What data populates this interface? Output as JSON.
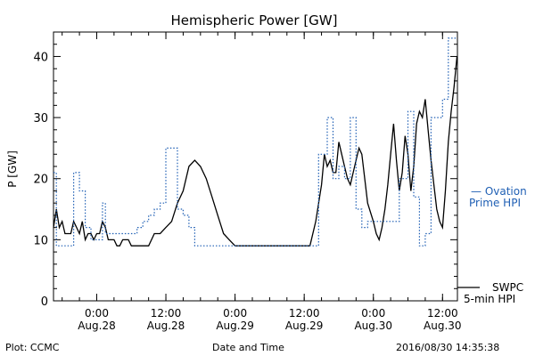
{
  "chart_data": {
    "type": "line",
    "title": "Hemispheric Power [GW]",
    "xlabel": "Date and Time",
    "ylabel": "P [GW]",
    "xlim": [
      "2016-08-27 16:30",
      "2016-08-30 14:35"
    ],
    "ylim": [
      0,
      44
    ],
    "yticks": [
      0,
      10,
      20,
      30,
      40
    ],
    "xticks": [
      {
        "x": "2016-08-28 00:00",
        "time": "0:00",
        "date": "Aug.28"
      },
      {
        "x": "2016-08-28 12:00",
        "time": "12:00",
        "date": "Aug.28"
      },
      {
        "x": "2016-08-29 00:00",
        "time": "0:00",
        "date": "Aug.29"
      },
      {
        "x": "2016-08-29 12:00",
        "time": "12:00",
        "date": "Aug.29"
      },
      {
        "x": "2016-08-30 00:00",
        "time": "0:00",
        "date": "Aug.30"
      },
      {
        "x": "2016-08-30 12:00",
        "time": "12:00",
        "date": "Aug.30"
      }
    ],
    "series": [
      {
        "name": "SWPC 5-min HPI",
        "legend_lines": [
          "SWPC",
          "5-min HPI"
        ],
        "color": "#000000",
        "style": "solid",
        "points": [
          [
            "2016-08-27 16:30",
            12
          ],
          [
            "2016-08-27 17:00",
            15
          ],
          [
            "2016-08-27 17:30",
            12
          ],
          [
            "2016-08-27 18:00",
            13
          ],
          [
            "2016-08-27 18:30",
            11
          ],
          [
            "2016-08-27 19:30",
            11
          ],
          [
            "2016-08-27 20:00",
            13
          ],
          [
            "2016-08-27 20:30",
            12
          ],
          [
            "2016-08-27 21:00",
            11
          ],
          [
            "2016-08-27 21:30",
            13
          ],
          [
            "2016-08-27 22:00",
            10
          ],
          [
            "2016-08-27 22:30",
            11
          ],
          [
            "2016-08-27 23:00",
            11
          ],
          [
            "2016-08-27 23:30",
            10
          ],
          [
            "2016-08-28 00:00",
            11
          ],
          [
            "2016-08-28 00:30",
            11
          ],
          [
            "2016-08-28 01:00",
            13
          ],
          [
            "2016-08-28 01:30",
            12
          ],
          [
            "2016-08-28 02:00",
            10
          ],
          [
            "2016-08-28 03:00",
            10
          ],
          [
            "2016-08-28 03:30",
            9
          ],
          [
            "2016-08-28 04:00",
            9
          ],
          [
            "2016-08-28 04:30",
            10
          ],
          [
            "2016-08-28 05:30",
            10
          ],
          [
            "2016-08-28 06:00",
            9
          ],
          [
            "2016-08-28 06:30",
            9
          ],
          [
            "2016-08-28 07:30",
            9
          ],
          [
            "2016-08-28 09:00",
            9
          ],
          [
            "2016-08-28 09:30",
            10
          ],
          [
            "2016-08-28 10:00",
            11
          ],
          [
            "2016-08-28 11:00",
            11
          ],
          [
            "2016-08-28 12:00",
            12
          ],
          [
            "2016-08-28 13:00",
            13
          ],
          [
            "2016-08-28 14:00",
            16
          ],
          [
            "2016-08-28 15:00",
            18
          ],
          [
            "2016-08-28 16:00",
            22
          ],
          [
            "2016-08-28 17:00",
            23
          ],
          [
            "2016-08-28 18:00",
            22
          ],
          [
            "2016-08-28 19:00",
            20
          ],
          [
            "2016-08-28 20:00",
            17
          ],
          [
            "2016-08-28 21:00",
            14
          ],
          [
            "2016-08-28 22:00",
            11
          ],
          [
            "2016-08-28 23:00",
            10
          ],
          [
            "2016-08-29 00:00",
            9
          ],
          [
            "2016-08-29 13:00",
            9
          ],
          [
            "2016-08-29 14:00",
            13
          ],
          [
            "2016-08-29 15:00",
            19
          ],
          [
            "2016-08-29 15:30",
            24
          ],
          [
            "2016-08-29 16:00",
            22
          ],
          [
            "2016-08-29 16:30",
            23
          ],
          [
            "2016-08-29 17:00",
            21
          ],
          [
            "2016-08-29 17:30",
            21
          ],
          [
            "2016-08-29 18:00",
            26
          ],
          [
            "2016-08-29 18:30",
            24
          ],
          [
            "2016-08-29 19:00",
            22
          ],
          [
            "2016-08-29 19:30",
            20
          ],
          [
            "2016-08-29 20:00",
            19
          ],
          [
            "2016-08-29 20:30",
            21
          ],
          [
            "2016-08-29 21:00",
            23
          ],
          [
            "2016-08-29 21:30",
            25
          ],
          [
            "2016-08-29 22:00",
            24
          ],
          [
            "2016-08-29 23:00",
            16
          ],
          [
            "2016-08-30 00:00",
            13
          ],
          [
            "2016-08-30 00:30",
            11
          ],
          [
            "2016-08-30 01:00",
            10
          ],
          [
            "2016-08-30 01:30",
            12
          ],
          [
            "2016-08-30 02:00",
            15
          ],
          [
            "2016-08-30 02:30",
            19
          ],
          [
            "2016-08-30 03:00",
            24
          ],
          [
            "2016-08-30 03:30",
            29
          ],
          [
            "2016-08-30 04:00",
            23
          ],
          [
            "2016-08-30 04:30",
            18
          ],
          [
            "2016-08-30 05:00",
            21
          ],
          [
            "2016-08-30 05:30",
            27
          ],
          [
            "2016-08-30 06:00",
            24
          ],
          [
            "2016-08-30 06:30",
            18
          ],
          [
            "2016-08-30 07:00",
            22
          ],
          [
            "2016-08-30 07:30",
            29
          ],
          [
            "2016-08-30 08:00",
            31
          ],
          [
            "2016-08-30 08:30",
            30
          ],
          [
            "2016-08-30 09:00",
            33
          ],
          [
            "2016-08-30 09:30",
            28
          ],
          [
            "2016-08-30 10:00",
            23
          ],
          [
            "2016-08-30 10:30",
            19
          ],
          [
            "2016-08-30 11:00",
            15
          ],
          [
            "2016-08-30 11:30",
            13
          ],
          [
            "2016-08-30 12:00",
            12
          ],
          [
            "2016-08-30 12:30",
            18
          ],
          [
            "2016-08-30 13:00",
            26
          ],
          [
            "2016-08-30 13:30",
            31
          ],
          [
            "2016-08-30 14:00",
            35
          ],
          [
            "2016-08-30 14:30",
            40
          ]
        ]
      },
      {
        "name": "Ovation Prime HPI",
        "legend_lines": [
          "— Ovation",
          "Prime HPI"
        ],
        "color": "#1f5fb4",
        "style": "dotted-step",
        "points": [
          [
            "2016-08-27 16:30",
            21
          ],
          [
            "2016-08-27 17:00",
            9
          ],
          [
            "2016-08-28 19:00",
            9
          ],
          [
            "2016-08-27 20:00",
            21
          ],
          [
            "2016-08-27 21:00",
            18
          ],
          [
            "2016-08-27 22:00",
            12
          ],
          [
            "2016-08-27 23:00",
            10
          ],
          [
            "2016-08-28 00:00",
            10
          ],
          [
            "2016-08-28 01:00",
            16
          ],
          [
            "2016-08-28 01:30",
            11
          ],
          [
            "2016-08-28 06:00",
            11
          ],
          [
            "2016-08-28 07:00",
            12
          ],
          [
            "2016-08-28 08:00",
            13
          ],
          [
            "2016-08-28 09:00",
            14
          ],
          [
            "2016-08-28 10:00",
            15
          ],
          [
            "2016-08-28 11:00",
            16
          ],
          [
            "2016-08-28 12:00",
            25
          ],
          [
            "2016-08-28 14:00",
            15
          ],
          [
            "2016-08-28 15:00",
            14
          ],
          [
            "2016-08-28 16:00",
            12
          ],
          [
            "2016-08-28 17:00",
            9
          ],
          [
            "2016-08-29 14:00",
            9
          ],
          [
            "2016-08-29 14:30",
            24
          ],
          [
            "2016-08-29 16:00",
            30
          ],
          [
            "2016-08-29 17:00",
            20
          ],
          [
            "2016-08-29 18:00",
            22
          ],
          [
            "2016-08-29 19:00",
            20
          ],
          [
            "2016-08-29 20:00",
            30
          ],
          [
            "2016-08-29 21:00",
            15
          ],
          [
            "2016-08-29 22:00",
            12
          ],
          [
            "2016-08-29 23:00",
            13
          ],
          [
            "2016-08-30 04:00",
            13
          ],
          [
            "2016-08-30 04:30",
            20
          ],
          [
            "2016-08-30 06:00",
            31
          ],
          [
            "2016-08-30 07:00",
            17
          ],
          [
            "2016-08-30 08:00",
            9
          ],
          [
            "2016-08-30 09:00",
            11
          ],
          [
            "2016-08-30 10:00",
            30
          ],
          [
            "2016-08-30 12:00",
            33
          ],
          [
            "2016-08-30 13:00",
            43
          ],
          [
            "2016-08-30 14:35",
            43
          ]
        ]
      }
    ]
  },
  "footer": {
    "left": "Plot: CCMC",
    "center": "Date and Time",
    "right": "2016/08/30 14:35:38"
  }
}
